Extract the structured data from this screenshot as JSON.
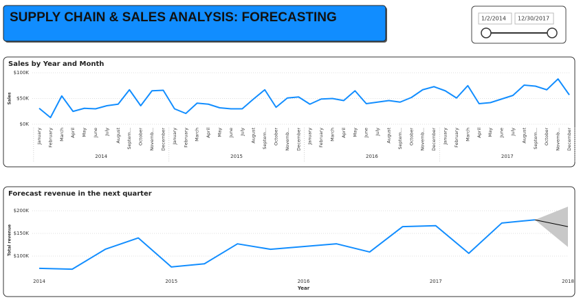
{
  "header": {
    "title": "SUPPLY CHAIN & SALES ANALYSIS: FORECASTING"
  },
  "slicer": {
    "start": "1/2/2014",
    "end": "12/30/2017"
  },
  "chart_data": [
    {
      "type": "line",
      "title": "Sales by Year and Month",
      "y_label": "Sales",
      "categories": [
        "January",
        "February",
        "March",
        "April",
        "May",
        "June",
        "July",
        "August",
        "Septem…",
        "October",
        "Novemb…",
        "December",
        "January",
        "February",
        "March",
        "April",
        "May",
        "June",
        "July",
        "August",
        "Septem…",
        "October",
        "Novemb…",
        "December",
        "January",
        "February",
        "March",
        "April",
        "May",
        "June",
        "July",
        "August",
        "Septem…",
        "October",
        "Novemb…",
        "December",
        "January",
        "February",
        "March",
        "April",
        "May",
        "June",
        "July",
        "August",
        "Septem…",
        "October",
        "Novemb…",
        "December"
      ],
      "groups": [
        "2014",
        "2015",
        "2016",
        "2017"
      ],
      "series": [
        {
          "color": "#118dff",
          "values": [
            31000,
            13000,
            55000,
            25000,
            31000,
            30000,
            36000,
            39000,
            67000,
            36000,
            65000,
            66000,
            30000,
            21000,
            41000,
            39000,
            32000,
            30000,
            30000,
            49000,
            67000,
            33000,
            51000,
            53000,
            39000,
            49000,
            50000,
            46000,
            65000,
            40000,
            43000,
            46000,
            43000,
            52000,
            67000,
            73000,
            65000,
            51000,
            75000,
            40000,
            42000,
            49000,
            56000,
            76000,
            74000,
            67000,
            88000,
            57000
          ]
        }
      ],
      "ylim": [
        0,
        100000
      ],
      "yticks": [
        {
          "value": 0,
          "label": "$0K"
        },
        {
          "value": 50000,
          "label": "$50K"
        },
        {
          "value": 100000,
          "label": "$100K"
        }
      ],
      "grid": true
    },
    {
      "type": "forecast",
      "title": "Forecast revenue in the next quarter",
      "x_label": "Year",
      "y_label": "Total revenue",
      "x": [
        2014,
        2014.25,
        2014.5,
        2014.75,
        2015,
        2015.25,
        2015.5,
        2015.75,
        2016,
        2016.25,
        2016.5,
        2016.75,
        2017,
        2017.25,
        2017.5,
        2017.75
      ],
      "series": [
        {
          "color": "#118dff",
          "values": [
            73000,
            71000,
            115000,
            140000,
            76000,
            83000,
            127000,
            115000,
            121000,
            127000,
            109000,
            165000,
            167000,
            106000,
            173000,
            180000
          ]
        }
      ],
      "forecast": {
        "color": "#000000",
        "x": [
          2017.75,
          2018
        ],
        "values": [
          180000,
          165000
        ]
      },
      "band": {
        "color": "#c8c8c8",
        "x": [
          2017.75,
          2018
        ],
        "lower": [
          180000,
          120000
        ],
        "upper": [
          180000,
          209000
        ]
      },
      "xlim": [
        2014,
        2018
      ],
      "xticks": [
        2014,
        2015,
        2016,
        2017,
        2018
      ],
      "ylim": [
        60000,
        210000
      ],
      "yticks": [
        {
          "value": 100000,
          "label": "$100K"
        },
        {
          "value": 150000,
          "label": "$150K"
        },
        {
          "value": 200000,
          "label": "$200K"
        }
      ],
      "grid": true
    }
  ]
}
